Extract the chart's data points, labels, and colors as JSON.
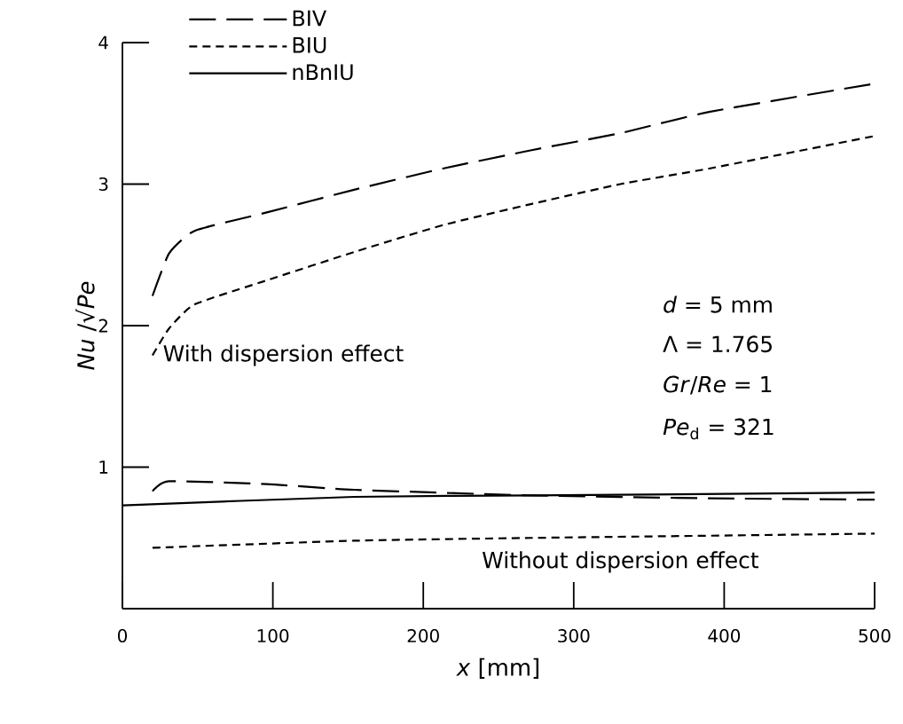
{
  "chart_data": {
    "type": "line",
    "xlabel": "*x*  [mm]",
    "ylabel": "*Nu* /√*Pe*",
    "xlim": [
      0,
      500
    ],
    "ylim": [
      0,
      4
    ],
    "xticks": [
      0,
      100,
      200,
      300,
      400,
      500
    ],
    "yticks": [
      1,
      2,
      3,
      4
    ],
    "grid": false,
    "legend": "top left",
    "marker": "none",
    "series": [
      {
        "name": "BIV",
        "color": "#000000",
        "line_style": "long dashed",
        "x": [
          20,
          31,
          48,
          96,
          154,
          213,
          272,
          331,
          390,
          500
        ],
        "values": [
          2.21,
          2.51,
          2.67,
          2.8,
          2.96,
          3.11,
          3.24,
          3.36,
          3.51,
          3.71
        ]
      },
      {
        "name": "BIU",
        "color": "#000000",
        "line_style": "dashed",
        "x": [
          20,
          31,
          48,
          96,
          154,
          213,
          272,
          331,
          390,
          500
        ],
        "values": [
          1.79,
          1.98,
          2.15,
          2.32,
          2.52,
          2.71,
          2.86,
          3.0,
          3.11,
          3.34
        ]
      },
      {
        "name": "nBnIU",
        "color": "#000000",
        "line_style": "solid",
        "x": [
          0,
          154,
          272,
          500
        ],
        "values": [
          0.73,
          0.79,
          0.8,
          0.82
        ]
      },
      {
        "color": "#000000",
        "line_style": "long dashed",
        "x": [
          20,
          31,
          96,
          154,
          272,
          390,
          500
        ],
        "values": [
          0.83,
          0.9,
          0.88,
          0.84,
          0.8,
          0.78,
          0.77
        ]
      },
      {
        "color": "#000000",
        "line_style": "dashed",
        "x": [
          20,
          154,
          272,
          500
        ],
        "values": [
          0.43,
          0.48,
          0.5,
          0.53
        ]
      }
    ],
    "annotations": [
      "With dispersion effect",
      "Without dispersion effect",
      "*d* = 5 mm",
      "Λ = 1.765",
      "*Gr*/*Re* = 1",
      "*Pe*$_{d}$ = 321"
    ]
  }
}
